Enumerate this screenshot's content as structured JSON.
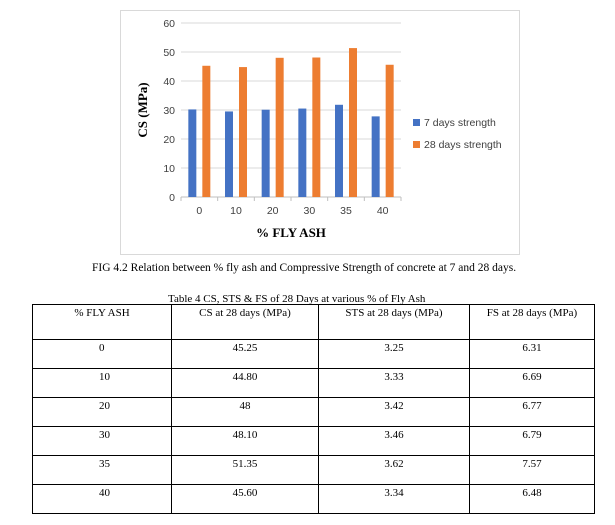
{
  "figure": {
    "caption": "FIG 4.2  Relation between % fly ash and Compressive Strength of concrete at 7 and 28 days."
  },
  "chart_data": {
    "type": "bar",
    "categories": [
      "0",
      "10",
      "20",
      "30",
      "35",
      "40"
    ],
    "series": [
      {
        "name": "7 days strength",
        "values": [
          30.2,
          29.5,
          30.1,
          30.5,
          31.8,
          27.8
        ],
        "color": "#4472C4"
      },
      {
        "name": "28 days strength",
        "values": [
          45.25,
          44.8,
          48,
          48.1,
          51.35,
          45.6
        ],
        "color": "#ED7D31"
      }
    ],
    "xlabel": "% FLY ASH",
    "ylabel": "CS (MPa)",
    "ylim": [
      0,
      60
    ],
    "yticks": [
      0,
      10,
      20,
      30,
      40,
      50,
      60
    ],
    "grid": true,
    "legend_position": "right"
  },
  "table": {
    "caption": "Table 4   CS, STS & FS of 28 Days  at various % of Fly Ash",
    "headers": [
      "% FLY ASH",
      "CS at 28 days (MPa)",
      "STS at 28 days (MPa)",
      "FS  at 28 days (MPa)"
    ],
    "rows": [
      [
        "0",
        "45.25",
        "3.25",
        "6.31"
      ],
      [
        "10",
        "44.80",
        "3.33",
        "6.69"
      ],
      [
        "20",
        "48",
        "3.42",
        "6.77"
      ],
      [
        "30",
        "48.10",
        "3.46",
        "6.79"
      ],
      [
        "35",
        "51.35",
        "3.62",
        "7.57"
      ],
      [
        "40",
        "45.60",
        "3.34",
        "6.48"
      ]
    ]
  }
}
